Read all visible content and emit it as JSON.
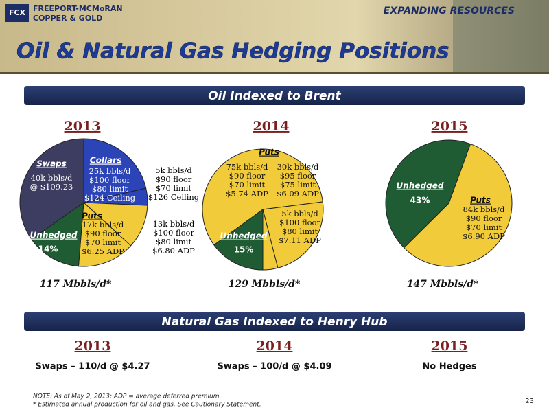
{
  "header": {
    "company_line1": "FREEPORT-MCMoRAN",
    "company_line2": "COPPER & GOLD",
    "tagline": "EXPANDING RESOURCES",
    "title": "Oil & Natural Gas Hedging Positions"
  },
  "oil_title": "Oil Indexed to Brent",
  "chart_data": [
    {
      "type": "pie",
      "title": "2013",
      "note": "117 Mbbls/d*",
      "categories": [
        "Collars",
        null,
        null,
        "Puts",
        "Unhedged",
        "Swaps"
      ],
      "values": [
        21.4,
        4.3,
        11.1,
        14.5,
        14,
        34.7
      ],
      "value_labels": [
        null,
        null,
        null,
        null,
        "14%",
        null
      ],
      "colors": [
        "#2b44b8",
        "#2b44b8",
        "#f2cb3a",
        "#f2cb3a",
        "#1f5c34",
        "#3d3d62"
      ],
      "details": [
        [
          "25k bbls/d",
          "$100 floor",
          "$80 limit",
          "$124 Ceiling"
        ],
        [
          "5k bbls/d",
          "$90 floor",
          "$70 limit",
          "$126 Ceiling"
        ],
        [
          "13k bbls/d",
          "$100 floor",
          "$80 limit",
          "$6.80 ADP"
        ],
        [
          "17k bbls/d",
          "$90 floor",
          "$70 limit",
          "$6.25 ADP"
        ],
        null,
        [
          "40k bbls/d",
          "@ $109.23"
        ]
      ]
    },
    {
      "type": "pie",
      "title": "2014",
      "note": "129 Mbbls/d*",
      "categories": [
        "Puts",
        null,
        null,
        "Unhedged"
      ],
      "values": [
        58,
        23,
        4,
        15
      ],
      "value_labels": [
        null,
        null,
        null,
        "15%"
      ],
      "colors": [
        "#f2cb3a",
        "#f2cb3a",
        "#f2cb3a",
        "#1f5c34"
      ],
      "details": [
        [
          "75k bbls/d",
          "$90 floor",
          "$70 limit",
          "$5.74 ADP"
        ],
        [
          "30k bbls/d",
          "$95 floor",
          "$75 limit",
          "$6.09 ADP"
        ],
        [
          "5k bbls/d",
          "$100 floor",
          "$80 limit",
          "$7.11 ADP"
        ],
        null
      ]
    },
    {
      "type": "pie",
      "title": "2015",
      "note": "147 Mbbls/d*",
      "categories": [
        "Puts",
        "Unhedged"
      ],
      "values": [
        57,
        43
      ],
      "value_labels": [
        null,
        "43%"
      ],
      "colors": [
        "#f2cb3a",
        "#1f5c34"
      ],
      "details": [
        [
          "84k bbls/d",
          "$90 floor",
          "$70 limit",
          "$6.90 ADP"
        ],
        null
      ]
    }
  ],
  "gas": {
    "title": "Natural Gas Indexed to Henry Hub",
    "items": [
      {
        "year": "2013",
        "text": "Swaps – 110/d @ $4.27"
      },
      {
        "year": "2014",
        "text": "Swaps – 100/d @ $4.09"
      },
      {
        "year": "2015",
        "text": "No Hedges"
      }
    ]
  },
  "notes": [
    "NOTE: As of May 2, 2013; ADP = average deferred premium.",
    "* Estimated annual production for oil and gas. See Cautionary Statement."
  ],
  "page_number": "23"
}
